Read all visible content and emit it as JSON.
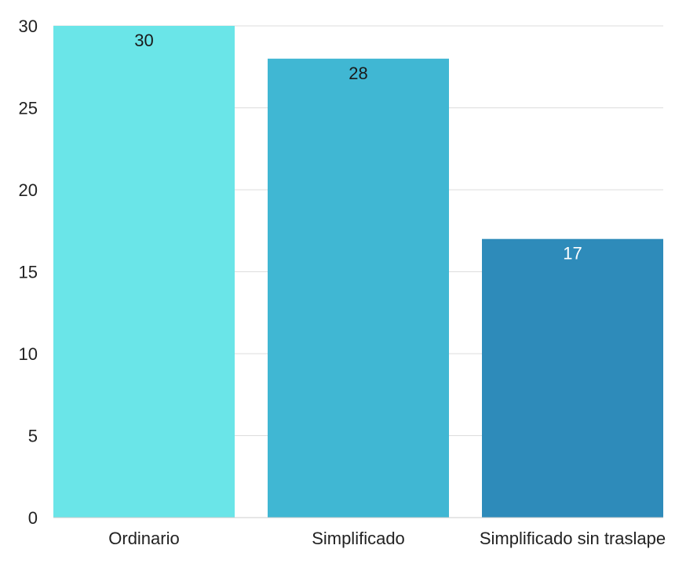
{
  "chart_data": {
    "type": "bar",
    "title": "",
    "xlabel": "",
    "ylabel": "",
    "categories": [
      "Ordinario",
      "Simplificado",
      "Simplificado sin traslape"
    ],
    "values": [
      30,
      28,
      17
    ],
    "data_labels": [
      "30",
      "28",
      "17"
    ],
    "colors": [
      "#6ae5e8",
      "#40b7d3",
      "#2e8bba"
    ],
    "label_colors": [
      "#1a1a1a",
      "#1a1a1a",
      "#ffffff"
    ],
    "ylim": [
      0,
      30
    ],
    "yticks": [
      0,
      5,
      10,
      15,
      20,
      25,
      30
    ],
    "ytick_labels": [
      "0",
      "5",
      "10",
      "15",
      "20",
      "25",
      "30"
    ],
    "grid": true,
    "legend": "none"
  }
}
